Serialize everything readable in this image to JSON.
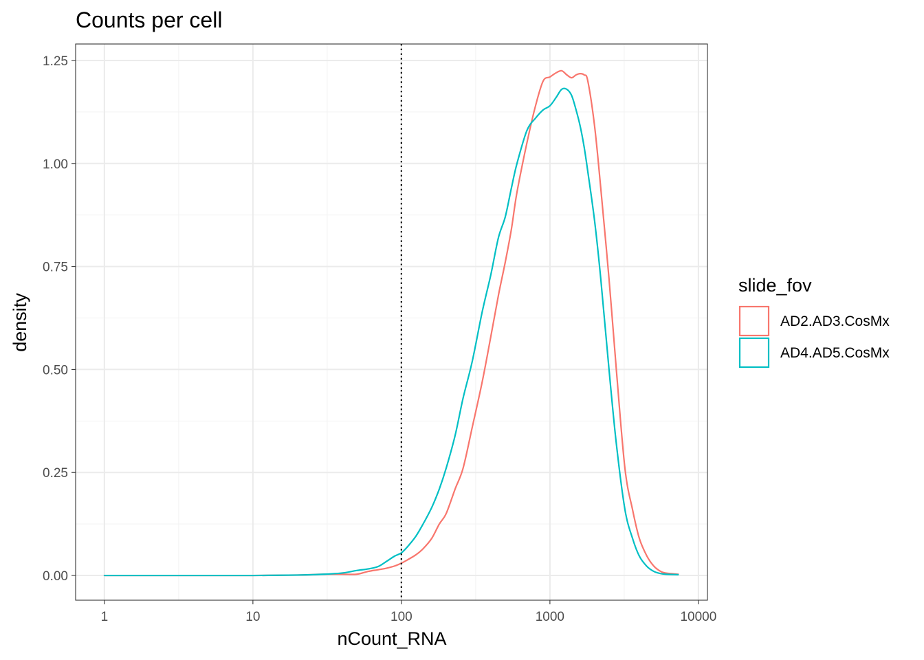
{
  "chart_data": {
    "type": "line",
    "subtype": "density",
    "title": "Counts per cell",
    "xlabel": "nCount_RNA",
    "ylabel": "density",
    "xscale": "log10",
    "xlim": [
      0.64,
      11500
    ],
    "ylim": [
      -0.06,
      1.29
    ],
    "x_ticks": [
      1,
      10,
      100,
      1000,
      10000
    ],
    "x_tick_labels": [
      "1",
      "10",
      "100",
      "1000",
      "10000"
    ],
    "y_ticks": [
      0,
      0.25,
      0.5,
      0.75,
      1.0,
      1.25
    ],
    "y_tick_labels": [
      "0.00",
      "0.25",
      "0.50",
      "0.75",
      "1.00",
      "1.25"
    ],
    "vline": {
      "x": 100,
      "style": "dotted",
      "color": "#000000"
    },
    "grid": true,
    "legend": {
      "title": "slide_fov",
      "position": "right"
    },
    "series": [
      {
        "name": "AD2.AD3.CosMx",
        "color": "#F8766D",
        "x": [
          1,
          5,
          10,
          20,
          30,
          40,
          50,
          60,
          70,
          80,
          90,
          100,
          110,
          125,
          140,
          160,
          180,
          200,
          230,
          260,
          300,
          350,
          400,
          450,
          500,
          550,
          600,
          700,
          800,
          900,
          1000,
          1100,
          1200,
          1300,
          1400,
          1500,
          1600,
          1700,
          1800,
          2000,
          2200,
          2500,
          2800,
          3200,
          3600,
          4000,
          4500,
          5000,
          5500,
          6000,
          7300
        ],
        "y": [
          0.0,
          0.0,
          0.0,
          0.001,
          0.003,
          0.003,
          0.003,
          0.01,
          0.014,
          0.018,
          0.023,
          0.03,
          0.038,
          0.05,
          0.065,
          0.09,
          0.125,
          0.15,
          0.21,
          0.26,
          0.36,
          0.47,
          0.58,
          0.68,
          0.76,
          0.84,
          0.93,
          1.05,
          1.14,
          1.2,
          1.21,
          1.22,
          1.225,
          1.215,
          1.208,
          1.215,
          1.218,
          1.215,
          1.2,
          1.09,
          0.94,
          0.72,
          0.5,
          0.26,
          0.16,
          0.09,
          0.047,
          0.023,
          0.011,
          0.006,
          0.003
        ]
      },
      {
        "name": "AD4.AD5.CosMx",
        "color": "#00BFC4",
        "x": [
          1,
          5,
          10,
          20,
          30,
          40,
          50,
          60,
          70,
          80,
          90,
          100,
          110,
          125,
          140,
          160,
          180,
          200,
          230,
          260,
          300,
          350,
          400,
          450,
          500,
          550,
          600,
          700,
          800,
          900,
          1000,
          1100,
          1200,
          1300,
          1400,
          1500,
          1600,
          1700,
          1800,
          2000,
          2200,
          2500,
          2800,
          3200,
          3600,
          4000,
          4500,
          5000,
          5500,
          6000,
          7300
        ],
        "y": [
          0.0,
          0.0,
          0.0,
          0.001,
          0.003,
          0.006,
          0.012,
          0.016,
          0.022,
          0.035,
          0.047,
          0.055,
          0.07,
          0.095,
          0.125,
          0.165,
          0.21,
          0.26,
          0.34,
          0.43,
          0.52,
          0.64,
          0.73,
          0.82,
          0.87,
          0.94,
          1.0,
          1.08,
          1.11,
          1.13,
          1.14,
          1.16,
          1.18,
          1.18,
          1.165,
          1.13,
          1.09,
          1.04,
          0.98,
          0.86,
          0.72,
          0.5,
          0.32,
          0.16,
          0.09,
          0.047,
          0.022,
          0.01,
          0.005,
          0.003,
          0.002
        ]
      }
    ]
  }
}
